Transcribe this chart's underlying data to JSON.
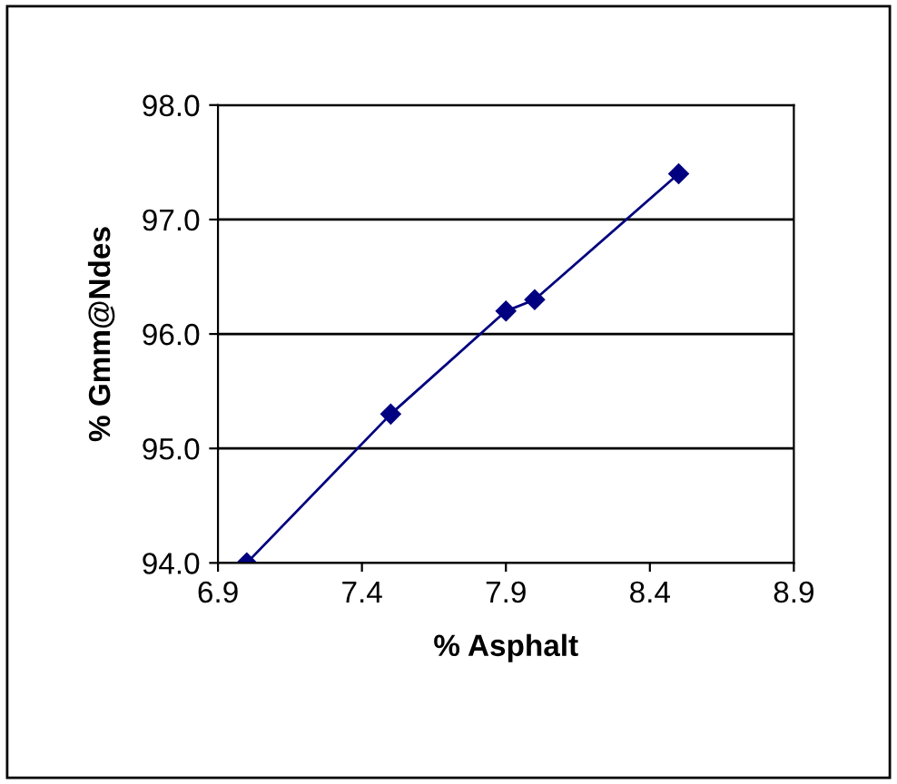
{
  "chart_data": {
    "type": "line",
    "xlabel": "% Asphalt",
    "ylabel": "% Gmm@Ndes",
    "x": [
      7.0,
      7.5,
      7.9,
      8.0,
      8.5
    ],
    "series": [
      {
        "color": "#000080",
        "values": [
          94.0,
          95.3,
          96.2,
          96.3,
          97.4
        ]
      }
    ],
    "xlim": [
      6.9,
      8.9
    ],
    "xticks": [
      6.9,
      7.4,
      7.9,
      8.4,
      8.9
    ],
    "ylim": [
      94.0,
      98.0
    ],
    "yticks": [
      {
        "value": 94,
        "label": "94.0"
      },
      {
        "value": 95,
        "label": "95.0"
      },
      {
        "value": 96,
        "label": "96.0"
      },
      {
        "value": 97,
        "label": "97.0"
      },
      {
        "value": 98,
        "label": "98.0"
      }
    ],
    "grid": "y",
    "legend": false,
    "marker": "diamond",
    "line_style": "solid"
  }
}
